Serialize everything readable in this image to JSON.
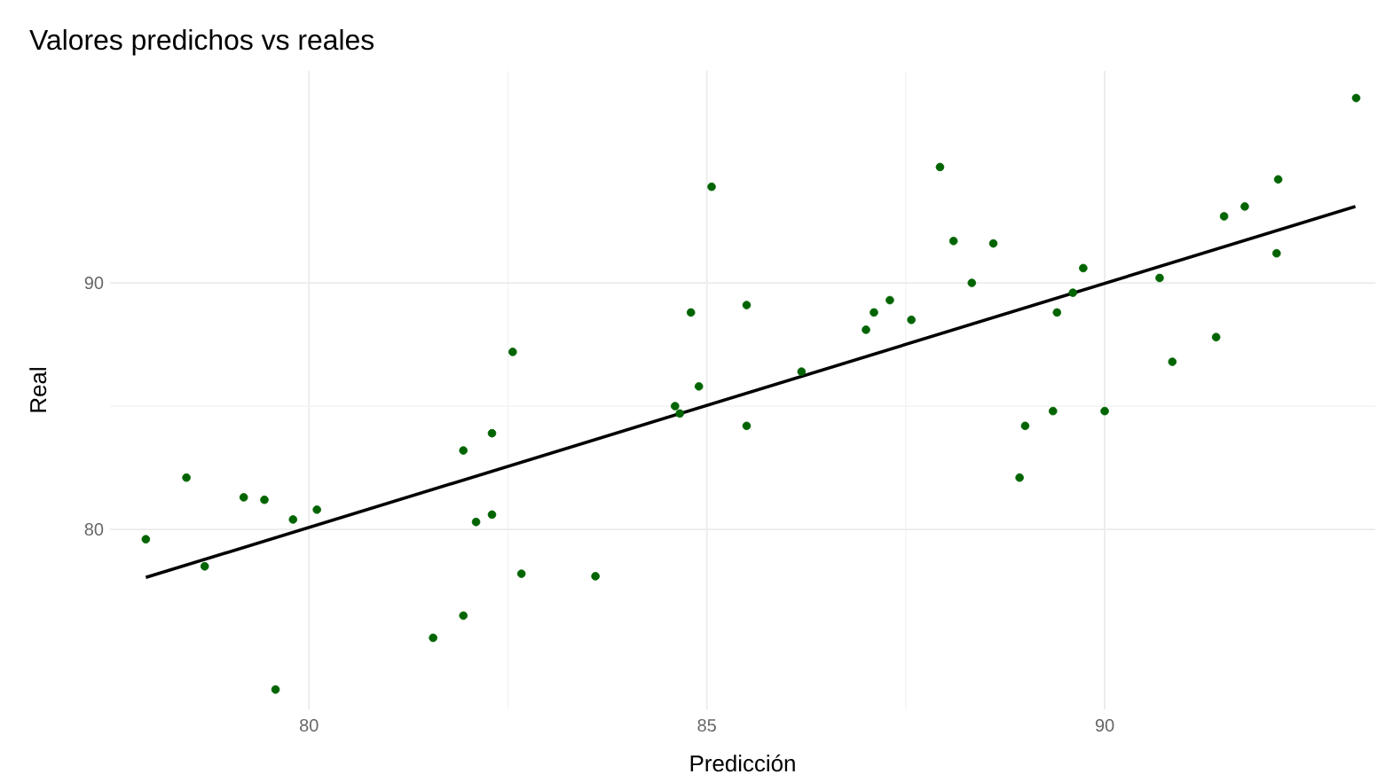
{
  "chart_data": {
    "type": "scatter",
    "title": "Valores predichos vs reales",
    "xlabel": "Predicción",
    "ylabel": "Real",
    "xlim": [
      77.5,
      93.4
    ],
    "ylim": [
      72.7,
      98.6
    ],
    "xticks": [
      80,
      85,
      90
    ],
    "yticks": [
      80,
      90
    ],
    "grid": true,
    "series": [
      {
        "color": "#006400",
        "marker": "circle",
        "x": [
          77.95,
          78.46,
          78.69,
          79.18,
          79.44,
          79.58,
          79.8,
          80.1,
          81.56,
          81.94,
          81.94,
          82.1,
          82.3,
          82.3,
          82.56,
          82.67,
          83.6,
          84.6,
          84.66,
          84.8,
          84.9,
          85.06,
          85.5,
          85.5,
          86.19,
          87.0,
          87.1,
          87.3,
          87.57,
          87.93,
          88.1,
          88.33,
          88.6,
          88.93,
          89.0,
          89.35,
          89.4,
          89.6,
          89.73,
          90.0,
          90.69,
          90.85,
          91.4,
          91.5,
          91.76,
          92.16,
          92.18,
          93.16
        ],
        "values": [
          79.6,
          82.1,
          78.5,
          81.3,
          81.2,
          73.5,
          80.4,
          80.8,
          75.6,
          76.5,
          83.2,
          80.3,
          80.6,
          83.9,
          87.2,
          78.2,
          78.1,
          85.0,
          84.7,
          88.8,
          85.8,
          93.9,
          84.2,
          89.1,
          86.4,
          88.1,
          88.8,
          89.3,
          88.5,
          94.7,
          91.7,
          90.0,
          91.6,
          82.1,
          84.2,
          84.8,
          88.8,
          89.6,
          90.6,
          84.8,
          90.2,
          86.8,
          87.8,
          92.7,
          93.1,
          91.2,
          94.2,
          97.5
        ]
      },
      {
        "type": "line",
        "color": "#000000",
        "marker": "none",
        "line_style": "solid",
        "x": [
          77.95,
          93.15
        ],
        "values": [
          78.05,
          93.1
        ]
      }
    ]
  }
}
